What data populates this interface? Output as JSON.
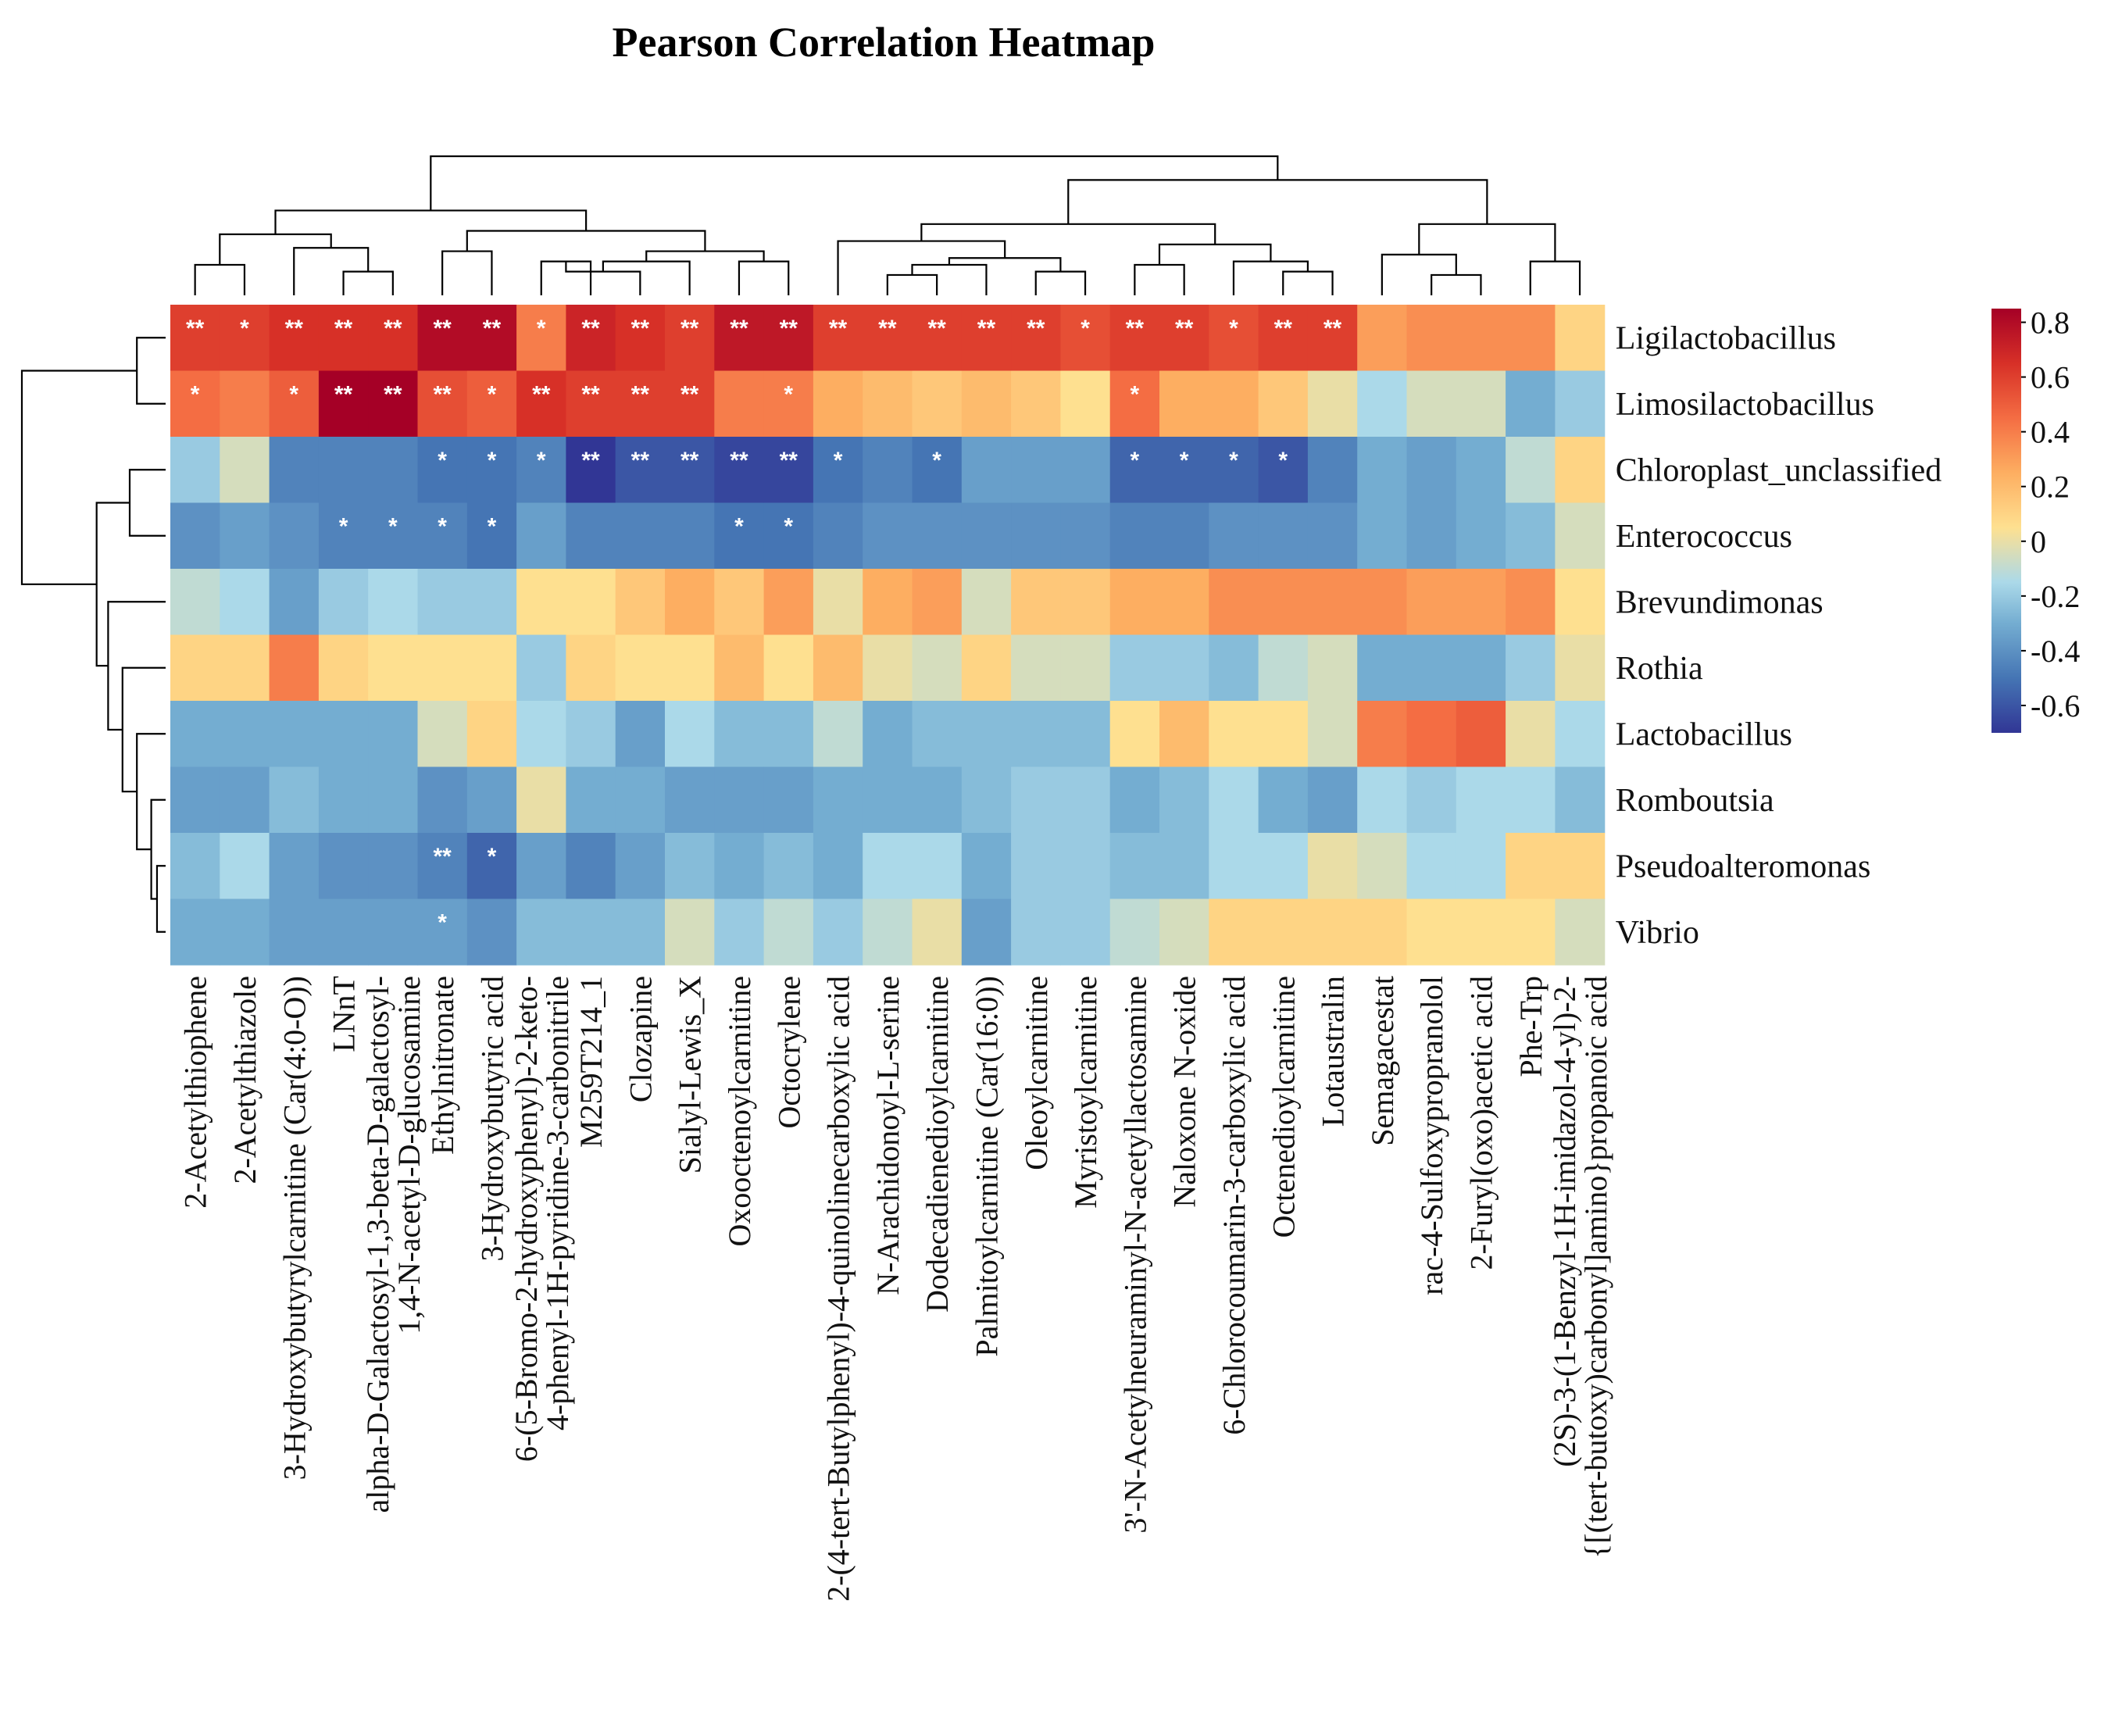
{
  "chart_data": {
    "type": "heatmap",
    "title": "Pearson Correlation Heatmap",
    "rows": [
      "Ligilactobacillus",
      "Limosilactobacillus",
      "Chloroplast_unclassified",
      "Enterococcus",
      "Brevundimonas",
      "Rothia",
      "Lactobacillus",
      "Romboutsia",
      "Pseudoalteromonas",
      "Vibrio"
    ],
    "columns": [
      [
        "2-Acetylthiophene"
      ],
      [
        "2-Acetylthiazole"
      ],
      [
        "3-Hydroxybutyrylcarnitine (Car(4:0-O))"
      ],
      [
        "LNnT"
      ],
      [
        "alpha-D-Galactosyl-1,3-beta-D-galactosyl-",
        "1,4-N-acetyl-D-glucosamine"
      ],
      [
        "Ethylnitronate"
      ],
      [
        "3-Hydroxybutyric acid"
      ],
      [
        "6-(5-Bromo-2-hydroxyphenyl)-2-keto-",
        "4-phenyl-1H-pyridine-3-carbonitrile"
      ],
      [
        "M259T214_1"
      ],
      [
        "Clozapine"
      ],
      [
        "Sialyl-Lewis_X"
      ],
      [
        "Oxooctenoylcarnitine"
      ],
      [
        "Octocrylene"
      ],
      [
        "2-(4-tert-Butylphenyl)-4-quinolinecarboxylic acid"
      ],
      [
        "N-Arachidonoyl-L-serine"
      ],
      [
        "Dodecadienedioylcarnitine"
      ],
      [
        "Palmitoylcarnitine (Car(16:0))"
      ],
      [
        "Oleoylcarnitine"
      ],
      [
        "Myristoylcarnitine"
      ],
      [
        "3'-N-Acetylneuraminyl-N-acetyllactosamine"
      ],
      [
        "Naloxone N-oxide"
      ],
      [
        "6-Chlorocoumarin-3-carboxylic acid"
      ],
      [
        "Octenedioylcarnitine"
      ],
      [
        "Lotaustralin"
      ],
      [
        "Semagacestat"
      ],
      [
        "rac-4-Sulfoxypropranolol"
      ],
      [
        "2-Furyl(oxo)acetic acid"
      ],
      [
        "Phe-Trp"
      ],
      [
        "(2S)-3-(1-Benzyl-1H-imidazol-4-yl)-2-",
        "{[(tert-butoxy)carbonyl]amino}propanoic acid"
      ]
    ],
    "values": [
      [
        0.6,
        0.6,
        0.65,
        0.65,
        0.65,
        0.8,
        0.8,
        0.4,
        0.7,
        0.65,
        0.6,
        0.75,
        0.75,
        0.6,
        0.6,
        0.6,
        0.6,
        0.6,
        0.55,
        0.6,
        0.6,
        0.55,
        0.6,
        0.6,
        0.3,
        0.35,
        0.35,
        0.35,
        0.1
      ],
      [
        0.45,
        0.4,
        0.5,
        0.85,
        0.85,
        0.55,
        0.5,
        0.65,
        0.6,
        0.6,
        0.6,
        0.4,
        0.4,
        0.25,
        0.2,
        0.15,
        0.2,
        0.15,
        0.05,
        0.45,
        0.25,
        0.25,
        0.15,
        0.0,
        -0.15,
        -0.05,
        -0.05,
        -0.3,
        -0.2
      ],
      [
        -0.2,
        -0.05,
        -0.45,
        -0.45,
        -0.45,
        -0.5,
        -0.5,
        -0.45,
        -0.75,
        -0.6,
        -0.6,
        -0.65,
        -0.65,
        -0.5,
        -0.45,
        -0.5,
        -0.35,
        -0.35,
        -0.35,
        -0.55,
        -0.55,
        -0.55,
        -0.6,
        -0.45,
        -0.3,
        -0.35,
        -0.3,
        -0.1,
        0.1
      ],
      [
        -0.4,
        -0.35,
        -0.4,
        -0.45,
        -0.45,
        -0.45,
        -0.5,
        -0.35,
        -0.45,
        -0.45,
        -0.45,
        -0.5,
        -0.5,
        -0.45,
        -0.4,
        -0.4,
        -0.4,
        -0.4,
        -0.4,
        -0.45,
        -0.45,
        -0.4,
        -0.4,
        -0.4,
        -0.3,
        -0.35,
        -0.3,
        -0.25,
        -0.05
      ],
      [
        -0.1,
        -0.15,
        -0.35,
        -0.2,
        -0.15,
        -0.2,
        -0.2,
        0.05,
        0.05,
        0.15,
        0.25,
        0.15,
        0.3,
        0.0,
        0.25,
        0.3,
        -0.05,
        0.15,
        0.15,
        0.25,
        0.25,
        0.35,
        0.35,
        0.35,
        0.35,
        0.3,
        0.3,
        0.35,
        0.05
      ],
      [
        0.1,
        0.1,
        0.4,
        0.1,
        0.05,
        0.05,
        0.05,
        -0.2,
        0.1,
        0.05,
        0.05,
        0.2,
        0.05,
        0.2,
        0.0,
        -0.05,
        0.1,
        -0.05,
        -0.05,
        -0.2,
        -0.2,
        -0.25,
        -0.1,
        -0.05,
        -0.3,
        -0.3,
        -0.3,
        -0.2,
        0.0
      ],
      [
        -0.3,
        -0.3,
        -0.3,
        -0.3,
        -0.3,
        -0.05,
        0.1,
        -0.15,
        -0.2,
        -0.35,
        -0.15,
        -0.25,
        -0.25,
        -0.1,
        -0.3,
        -0.25,
        -0.25,
        -0.25,
        -0.25,
        0.05,
        0.2,
        0.05,
        0.05,
        -0.05,
        0.4,
        0.45,
        0.5,
        0.0,
        -0.15
      ],
      [
        -0.35,
        -0.35,
        -0.25,
        -0.3,
        -0.3,
        -0.4,
        -0.35,
        0.0,
        -0.3,
        -0.3,
        -0.35,
        -0.35,
        -0.35,
        -0.3,
        -0.3,
        -0.3,
        -0.25,
        -0.2,
        -0.2,
        -0.3,
        -0.25,
        -0.15,
        -0.3,
        -0.35,
        -0.15,
        -0.2,
        -0.15,
        -0.15,
        -0.25
      ],
      [
        -0.25,
        -0.15,
        -0.35,
        -0.4,
        -0.4,
        -0.45,
        -0.55,
        -0.35,
        -0.45,
        -0.35,
        -0.25,
        -0.3,
        -0.25,
        -0.3,
        -0.15,
        -0.15,
        -0.3,
        -0.2,
        -0.2,
        -0.25,
        -0.25,
        -0.15,
        -0.15,
        0.0,
        -0.05,
        -0.15,
        -0.15,
        0.1,
        0.1
      ],
      [
        -0.3,
        -0.3,
        -0.35,
        -0.35,
        -0.35,
        -0.35,
        -0.4,
        -0.25,
        -0.25,
        -0.25,
        -0.05,
        -0.2,
        -0.1,
        -0.2,
        -0.1,
        0.0,
        -0.35,
        -0.2,
        -0.2,
        -0.1,
        -0.05,
        0.1,
        0.1,
        0.1,
        0.1,
        0.05,
        0.05,
        0.05,
        -0.05
      ]
    ],
    "significance": [
      [
        "**",
        "*",
        "**",
        "**",
        "**",
        "**",
        "**",
        "*",
        "**",
        "**",
        "**",
        "**",
        "**",
        "**",
        "**",
        "**",
        "**",
        "**",
        "*",
        "**",
        "**",
        "*",
        "**",
        "**",
        "",
        "",
        "",
        "",
        ""
      ],
      [
        "*",
        "",
        "*",
        "**",
        "**",
        "**",
        "*",
        "**",
        "**",
        "**",
        "**",
        "",
        "*",
        "",
        "",
        "",
        "",
        "",
        "",
        "*",
        "",
        "",
        "",
        "",
        "",
        "",
        "",
        "",
        ""
      ],
      [
        "",
        "",
        "",
        "",
        "",
        "*",
        "*",
        "*",
        "**",
        "**",
        "**",
        "**",
        "**",
        "*",
        "",
        "*",
        "",
        "",
        "",
        "*",
        "*",
        "*",
        "*",
        "",
        "",
        "",
        "",
        "",
        ""
      ],
      [
        "",
        "",
        "",
        "*",
        "*",
        "*",
        "*",
        "",
        "",
        "",
        "",
        "*",
        "*",
        "",
        "",
        "",
        "",
        "",
        "",
        "",
        "",
        "",
        "",
        "",
        "",
        "",
        "",
        "",
        ""
      ],
      [
        "",
        "",
        "",
        "",
        "",
        "",
        "",
        "",
        "",
        "",
        "",
        "",
        "",
        "",
        "",
        "",
        "",
        "",
        "",
        "",
        "",
        "",
        "",
        "",
        "",
        "",
        "",
        "",
        ""
      ],
      [
        "",
        "",
        "",
        "",
        "",
        "",
        "",
        "",
        "",
        "",
        "",
        "",
        "",
        "",
        "",
        "",
        "",
        "",
        "",
        "",
        "",
        "",
        "",
        "",
        "",
        "",
        "",
        "",
        ""
      ],
      [
        "",
        "",
        "",
        "",
        "",
        "",
        "",
        "",
        "",
        "",
        "",
        "",
        "",
        "",
        "",
        "",
        "",
        "",
        "",
        "",
        "",
        "",
        "",
        "",
        "",
        "",
        "",
        "",
        ""
      ],
      [
        "",
        "",
        "",
        "",
        "",
        "",
        "",
        "",
        "",
        "",
        "",
        "",
        "",
        "",
        "",
        "",
        "",
        "",
        "",
        "",
        "",
        "",
        "",
        "",
        "",
        "",
        "",
        "",
        ""
      ],
      [
        "",
        "",
        "",
        "",
        "",
        "**",
        "*",
        "",
        "",
        "",
        "",
        "",
        "",
        "",
        "",
        "",
        "",
        "",
        "",
        "",
        "",
        "",
        "",
        "",
        "",
        "",
        "",
        "",
        ""
      ],
      [
        "",
        "",
        "",
        "",
        "",
        "*",
        "",
        "",
        "",
        "",
        "",
        "",
        "",
        "",
        "",
        "",
        "",
        "",
        "",
        "",
        "",
        "",
        "",
        "",
        "",
        "",
        "",
        "",
        ""
      ]
    ],
    "colorbar": {
      "ticks": [
        "0.8",
        "0.6",
        "0.4",
        "0.2",
        "0",
        "-0.2",
        "-0.4",
        "-0.6"
      ],
      "tick_values": [
        0.8,
        0.6,
        0.4,
        0.2,
        0,
        -0.2,
        -0.4,
        -0.6
      ],
      "range": [
        -0.7,
        0.85
      ],
      "colors": [
        "#313695",
        "#4575b4",
        "#74add1",
        "#abd9e9",
        "#fee090",
        "#fdae61",
        "#f46d43",
        "#d73027",
        "#a50026"
      ],
      "color_values": [
        -0.7,
        -0.5,
        -0.3,
        -0.15,
        0.05,
        0.25,
        0.45,
        0.65,
        0.85
      ]
    },
    "col_dendrogram": [
      [
        0,
        1,
        0.09
      ],
      [
        3,
        4,
        0.07
      ],
      [
        2,
        30,
        0.14
      ],
      [
        29,
        31,
        0.18
      ],
      [
        5,
        6,
        0.13
      ],
      [
        7,
        8,
        0.1
      ],
      [
        9,
        34,
        0.07
      ],
      [
        10,
        35,
        0.1
      ],
      [
        11,
        12,
        0.1
      ],
      [
        36,
        37,
        0.13
      ],
      [
        33,
        38,
        0.19
      ],
      [
        32,
        39,
        0.25
      ],
      [
        14,
        15,
        0.06
      ],
      [
        16,
        41,
        0.09
      ],
      [
        17,
        18,
        0.07
      ],
      [
        42,
        43,
        0.11
      ],
      [
        13,
        44,
        0.16
      ],
      [
        19,
        20,
        0.09
      ],
      [
        22,
        23,
        0.07
      ],
      [
        21,
        47,
        0.1
      ],
      [
        46,
        48,
        0.15
      ],
      [
        45,
        49,
        0.21
      ],
      [
        25,
        26,
        0.06
      ],
      [
        24,
        51,
        0.12
      ],
      [
        27,
        28,
        0.1
      ],
      [
        52,
        53,
        0.21
      ],
      [
        50,
        54,
        0.34
      ],
      [
        40,
        55,
        0.41
      ]
    ],
    "row_dendrogram": [
      [
        0,
        1,
        0.2
      ],
      [
        2,
        3,
        0.25
      ],
      [
        8,
        9,
        0.06
      ],
      [
        7,
        12,
        0.1
      ],
      [
        6,
        13,
        0.2
      ],
      [
        5,
        14,
        0.3
      ],
      [
        4,
        15,
        0.4
      ],
      [
        11,
        16,
        0.48
      ],
      [
        10,
        17,
        1.0
      ]
    ]
  }
}
